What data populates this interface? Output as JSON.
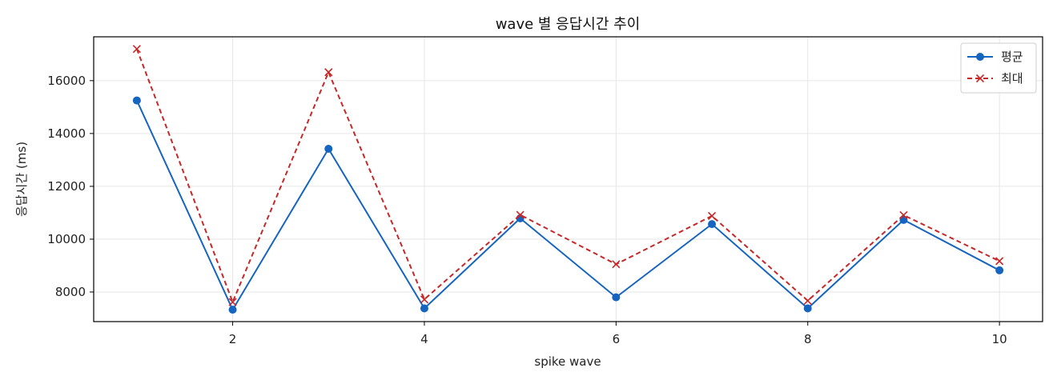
{
  "chart_data": {
    "type": "line",
    "title": "wave 별 응답시간 추이",
    "xlabel": "spike wave",
    "ylabel": "응답시간 (ms)",
    "x": [
      1,
      2,
      3,
      4,
      5,
      6,
      7,
      8,
      9,
      10
    ],
    "xlim": [
      0.55,
      10.45
    ],
    "ylim": [
      6880,
      17660
    ],
    "xticks": [
      2,
      4,
      6,
      8,
      10
    ],
    "yticks": [
      8000,
      10000,
      12000,
      14000,
      16000
    ],
    "grid": true,
    "legend_position": "top-right",
    "series": [
      {
        "name": "평균",
        "values": [
          15250,
          7330,
          13420,
          7380,
          10790,
          7800,
          10570,
          7380,
          10730,
          8820
        ],
        "color": "#1565c0",
        "line_style": "solid",
        "marker": "circle"
      },
      {
        "name": "최대",
        "values": [
          17200,
          7620,
          16320,
          7720,
          10920,
          9050,
          10880,
          7670,
          10910,
          9170
        ],
        "color": "#c62828",
        "line_style": "dashed",
        "marker": "x"
      }
    ]
  }
}
